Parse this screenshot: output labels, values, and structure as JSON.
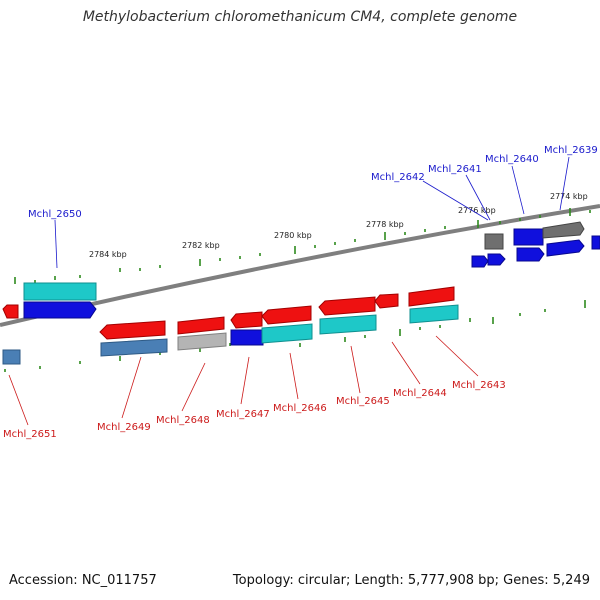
{
  "title": "Methylobacterium chloromethanicum CM4, complete genome",
  "accession": "Accession: NC_011757",
  "summary": "Topology: circular; Length: 5,777,908 bp; Genes: 5,249",
  "colors": {
    "backbone": "#7f7f7f",
    "tick": "#2e8b1e",
    "label_top": "#1a1acc",
    "label_bottom": "#cc1a1a",
    "red": "#ee1111",
    "blue": "#1010dd",
    "cyan": "#1ec8c8",
    "steel": "#4a7fb5",
    "lightgray": "#b4b4b4",
    "darkgray": "#6f6f6f"
  },
  "scale_labels": [
    "2774 kbp",
    "2776 kbp",
    "2778 kbp",
    "2780 kbp",
    "2782 kbp",
    "2784 kbp"
  ],
  "gene_labels": {
    "top": [
      "Mchl_2650",
      "Mchl_2642",
      "Mchl_2641",
      "Mchl_2640",
      "Mchl_2639"
    ],
    "bottom": [
      "Mchl_2651",
      "Mchl_2649",
      "Mchl_2648",
      "Mchl_2647",
      "Mchl_2646",
      "Mchl_2645",
      "Mchl_2644",
      "Mchl_2643"
    ]
  }
}
